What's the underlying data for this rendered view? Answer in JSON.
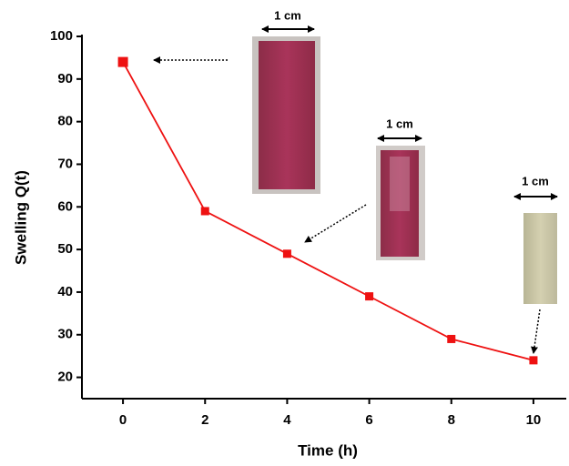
{
  "chart_data": {
    "type": "line",
    "xlabel": "Time (h)",
    "ylabel": "Swelling Q(t)",
    "x": [
      0,
      2,
      4,
      6,
      8,
      10
    ],
    "series": [
      {
        "color": "#ee1111",
        "values": [
          94,
          59,
          49,
          39,
          29,
          24
        ]
      }
    ],
    "xlim": [
      -1,
      10.8
    ],
    "ylim": [
      15,
      100
    ],
    "xticks": [
      0,
      2,
      4,
      6,
      8,
      10
    ],
    "yticks": [
      20,
      30,
      40,
      50,
      60,
      70,
      80,
      90,
      100
    ],
    "annotations": [
      "1 cm",
      "1 cm",
      "1 cm"
    ]
  }
}
